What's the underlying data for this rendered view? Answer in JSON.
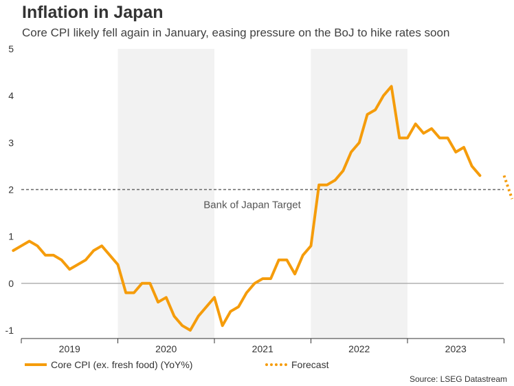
{
  "header": {
    "title": "Inflation in Japan",
    "subtitle": "Core CPI likely fell again in January, easing pressure on the BoJ to hike rates soon"
  },
  "source": "Source: LSEG Datastream",
  "colors": {
    "series": "#f59c0b",
    "band": "#f2f2f2",
    "target_line": "#666666",
    "zero_line": "#999999"
  },
  "chart_data": {
    "type": "line",
    "title": "Inflation in Japan",
    "subtitle": "Core CPI likely fell again in January, easing pressure on the BoJ to hike rates soon",
    "xlabel": "",
    "ylabel": "",
    "ylim": [
      -1.2,
      5
    ],
    "yticks": [
      -1,
      0,
      1,
      2,
      3,
      4,
      5
    ],
    "x_categories": [
      "2019",
      "2020",
      "2021",
      "2022",
      "2023"
    ],
    "shaded_years": [
      "2020",
      "2022"
    ],
    "grid": false,
    "legend_position": "bottom",
    "series": [
      {
        "name": "Core CPI (ex. fresh food) (YoY%)",
        "style": "solid",
        "start": "2018-12",
        "values": [
          0.7,
          0.8,
          0.9,
          0.8,
          0.6,
          0.6,
          0.5,
          0.3,
          0.4,
          0.5,
          0.7,
          0.8,
          0.6,
          0.4,
          -0.2,
          -0.2,
          0.0,
          0.0,
          -0.4,
          -0.3,
          -0.7,
          -0.9,
          -1.0,
          -0.7,
          -0.5,
          -0.3,
          -0.9,
          -0.6,
          -0.5,
          -0.2,
          0.0,
          0.1,
          0.1,
          0.5,
          0.5,
          0.2,
          0.6,
          0.8,
          2.1,
          2.1,
          2.2,
          2.4,
          2.8,
          3.0,
          3.6,
          3.7,
          4.0,
          4.2,
          3.1,
          3.1,
          3.4,
          3.2,
          3.3,
          3.1,
          3.1,
          2.8,
          2.9,
          2.5,
          2.3
        ]
      },
      {
        "name": "Forecast",
        "style": "dotted",
        "start": "2024-01",
        "values": [
          2.3,
          1.8
        ]
      }
    ],
    "annotations": [
      {
        "text": "Bank of Japan Target",
        "y": 2
      }
    ],
    "reference_lines": [
      {
        "y": 2,
        "style": "dashed"
      },
      {
        "y": 0,
        "style": "solid"
      }
    ]
  }
}
